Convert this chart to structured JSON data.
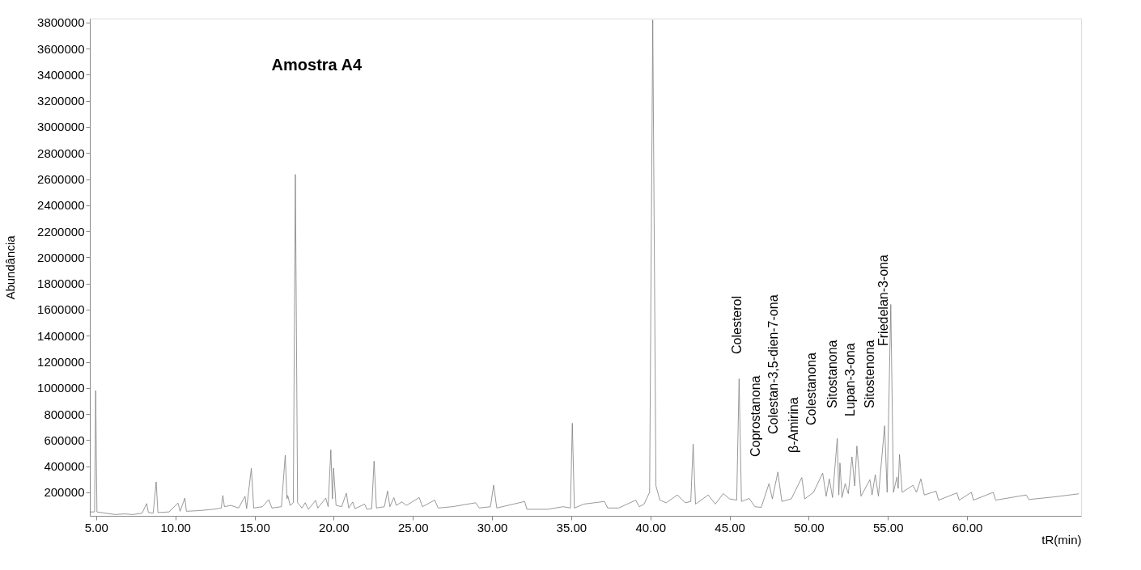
{
  "chart_data": {
    "type": "line",
    "title": "Amostra A4",
    "xlabel": "tR(min)",
    "ylabel": "Abundância",
    "xlim": [
      4.6,
      67.2
    ],
    "xticks": [
      {
        "value": 5,
        "label": "5.00"
      },
      {
        "value": 10,
        "label": "10.00"
      },
      {
        "value": 15,
        "label": "15.00"
      },
      {
        "value": 20,
        "label": "20.00"
      },
      {
        "value": 25,
        "label": "25.00"
      },
      {
        "value": 30,
        "label": "30.00"
      },
      {
        "value": 35,
        "label": "35.00"
      },
      {
        "value": 40,
        "label": "40.00"
      },
      {
        "value": 45,
        "label": "45.00"
      },
      {
        "value": 50,
        "label": "50.00"
      },
      {
        "value": 55,
        "label": "55.00"
      },
      {
        "value": 60,
        "label": "60.00"
      }
    ],
    "ylim": [
      20000,
      3830000
    ],
    "yticks": [
      200000,
      400000,
      600000,
      800000,
      1000000,
      1200000,
      1400000,
      1600000,
      1800000,
      2000000,
      2200000,
      2400000,
      2600000,
      2800000,
      3000000,
      3200000,
      3400000,
      3600000,
      3800000
    ],
    "grid": false,
    "marker": "none",
    "line_style": "solid",
    "series": [
      {
        "color": "#7f7f7f",
        "x": [
          4.6,
          4.9,
          4.97,
          5.05,
          5.6,
          6.2,
          6.8,
          7.3,
          7.9,
          8.19,
          8.3,
          8.6,
          8.79,
          8.9,
          9.6,
          10.17,
          10.3,
          10.6,
          10.7,
          11.5,
          12.4,
          12.9,
          13.0,
          13.1,
          13.5,
          14.0,
          14.4,
          14.5,
          14.8,
          14.95,
          15.5,
          15.9,
          16.1,
          16.7,
          16.94,
          17.05,
          17.1,
          17.25,
          17.45,
          17.58,
          17.72,
          18.0,
          18.2,
          18.4,
          18.86,
          19.0,
          19.5,
          19.65,
          19.82,
          19.92,
          19.99,
          20.15,
          20.5,
          20.8,
          20.95,
          21.2,
          21.35,
          21.95,
          22.1,
          22.4,
          22.55,
          22.7,
          23.2,
          23.4,
          23.55,
          23.8,
          23.95,
          24.3,
          24.6,
          25.4,
          25.6,
          26.38,
          26.6,
          27.5,
          28.96,
          29.2,
          29.9,
          30.1,
          30.3,
          32.06,
          32.2,
          33.5,
          34.5,
          34.95,
          35.07,
          35.2,
          35.8,
          37.1,
          37.3,
          38.0,
          39.07,
          39.3,
          39.6,
          39.95,
          40.15,
          40.35,
          40.6,
          41.0,
          41.7,
          42.2,
          42.55,
          42.7,
          42.85,
          43.65,
          44.1,
          44.6,
          45.0,
          45.45,
          45.6,
          45.75,
          46.24,
          46.6,
          47.0,
          47.49,
          47.7,
          48.05,
          48.3,
          48.9,
          49.56,
          49.75,
          50.3,
          50.88,
          51.1,
          51.3,
          51.5,
          51.8,
          51.9,
          51.97,
          52.1,
          52.3,
          52.5,
          52.73,
          52.9,
          53.04,
          53.3,
          53.86,
          54.0,
          54.2,
          54.4,
          54.79,
          54.95,
          55.18,
          55.35,
          55.57,
          55.65,
          55.73,
          55.9,
          56.58,
          56.8,
          57.08,
          57.3,
          58.04,
          58.2,
          59.36,
          59.5,
          60.27,
          60.4,
          61.65,
          61.8,
          63.73,
          63.9,
          65.5,
          67.06
        ],
        "values": [
          50000,
          50000,
          980000,
          50000,
          40000,
          30000,
          35000,
          30000,
          40000,
          114000,
          45000,
          40000,
          280000,
          45000,
          50000,
          118000,
          55000,
          156000,
          55000,
          60000,
          70000,
          80000,
          176000,
          90000,
          100000,
          80000,
          170000,
          75000,
          384000,
          80000,
          90000,
          144000,
          80000,
          90000,
          484000,
          150000,
          176000,
          100000,
          120000,
          2636000,
          120000,
          80000,
          120000,
          70000,
          138000,
          80000,
          156000,
          90000,
          526000,
          150000,
          386000,
          100000,
          90000,
          194000,
          80000,
          126000,
          75000,
          110000,
          70000,
          75000,
          440000,
          80000,
          90000,
          210000,
          90000,
          160000,
          100000,
          126000,
          100000,
          160000,
          90000,
          140000,
          80000,
          90000,
          120000,
          80000,
          90000,
          255000,
          80000,
          130000,
          70000,
          70000,
          90000,
          80000,
          730000,
          80000,
          110000,
          130000,
          80000,
          80000,
          140000,
          90000,
          110000,
          200000,
          3820000,
          250000,
          140000,
          120000,
          180000,
          120000,
          130000,
          570000,
          110000,
          180000,
          110000,
          190000,
          150000,
          140000,
          1070000,
          130000,
          153000,
          90000,
          85000,
          267000,
          150000,
          356000,
          130000,
          150000,
          313000,
          150000,
          200000,
          348000,
          170000,
          303000,
          160000,
          613000,
          180000,
          425000,
          160000,
          267000,
          190000,
          472000,
          250000,
          555000,
          170000,
          297000,
          180000,
          336000,
          170000,
          710000,
          200000,
          1640000,
          200000,
          318000,
          230000,
          490000,
          200000,
          254000,
          200000,
          303000,
          180000,
          209000,
          140000,
          196000,
          140000,
          200000,
          140000,
          200000,
          140000,
          180000,
          145000,
          165000,
          189000
        ]
      }
    ],
    "annotations": [
      "Colesterol",
      "Coprostanona",
      "Colestan-3,5-dien-7-ona",
      "β-Amirina",
      "Colestanona",
      "Sitostanona",
      "Lupan-3-ona",
      "Sitostenona",
      "Friedelan-3-ona"
    ]
  }
}
